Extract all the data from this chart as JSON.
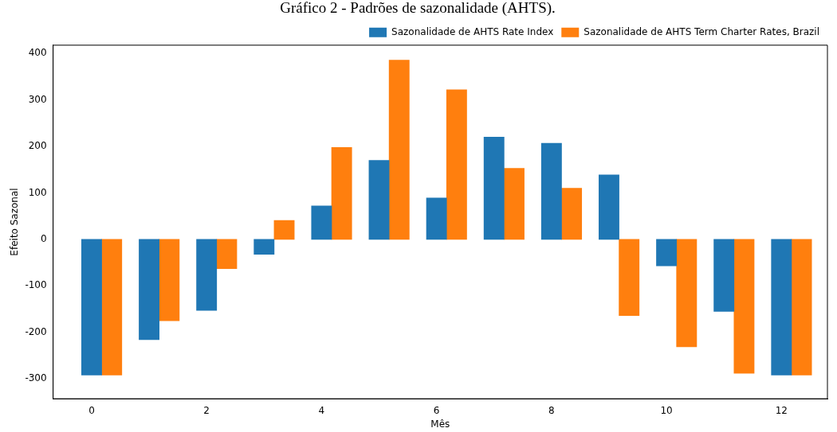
{
  "chart_data": {
    "type": "bar",
    "title": "Gráfico 2 - Padrões de sazonalidade (AHTS).",
    "xlabel": "Mês",
    "ylabel": "Efeito Sazonal",
    "x": [
      0,
      1,
      2,
      3,
      4,
      5,
      6,
      7,
      8,
      9,
      10,
      11,
      12
    ],
    "series": [
      {
        "name": "Sazonalidade de AHTS Rate Index",
        "color": "#1f77b4",
        "values": [
          -292,
          -216,
          -153,
          -32,
          72,
          170,
          89,
          220,
          207,
          139,
          -57,
          -155,
          -292
        ]
      },
      {
        "name": "Sazonalidade de AHTS Term Charter Rates, Brazil",
        "color": "#ff7f0e",
        "x": [
          0.35,
          1.35,
          2.35,
          3.35,
          4.35,
          5.35,
          6.35,
          7.35,
          8.35,
          9.35,
          10.35,
          11.35,
          12.35
        ],
        "values": [
          -292,
          -175,
          -63,
          41,
          198,
          386,
          322,
          153,
          110,
          -164,
          -231,
          -288,
          -292
        ]
      }
    ],
    "xlim": [
      -0.67,
      12.8
    ],
    "xticks": [
      0,
      2,
      4,
      6,
      8,
      10,
      12
    ],
    "ylim": [
      -343,
      418
    ],
    "yticks": [
      -300,
      -200,
      -100,
      0,
      100,
      200,
      300,
      400
    ],
    "grid": false,
    "legend": "top right"
  }
}
